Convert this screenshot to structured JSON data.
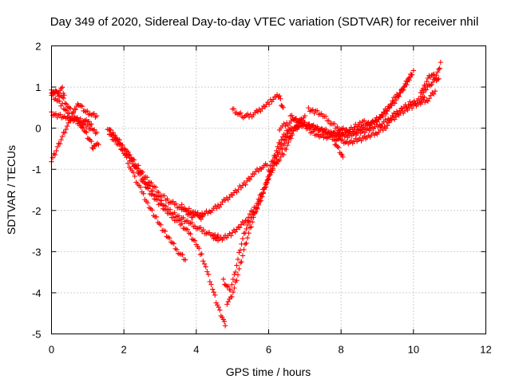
{
  "chart_data": {
    "type": "scatter",
    "title": "Day 349 of 2020, Sidereal Day-to-day VTEC variation (SDTVAR) for receiver nhil",
    "xlabel": "GPS time / hours",
    "ylabel": "SDTVAR / TECUs",
    "xlim": [
      0,
      12
    ],
    "ylim": [
      -5,
      2
    ],
    "xticks": [
      0,
      2,
      4,
      6,
      8,
      10,
      12
    ],
    "yticks": [
      -5,
      -4,
      -3,
      -2,
      -1,
      0,
      1,
      2
    ],
    "grid": true,
    "marker": "plus",
    "color": "#ff0000",
    "series": [
      {
        "points": [
          [
            0,
            0.9
          ],
          [
            0.15,
            0.85
          ],
          [
            0.3,
            0.75
          ],
          [
            0.45,
            0.55
          ],
          [
            0.6,
            0.35
          ],
          [
            0.75,
            0.15
          ],
          [
            0.9,
            -0.05
          ],
          [
            1.0,
            -0.2
          ],
          [
            1.1,
            -0.35
          ],
          [
            1.15,
            -0.5
          ],
          [
            1.2,
            -0.4
          ],
          [
            1.3,
            -0.4
          ]
        ]
      },
      {
        "points": [
          [
            0,
            0.8
          ],
          [
            0.15,
            0.7
          ],
          [
            0.3,
            0.55
          ],
          [
            0.45,
            0.35
          ],
          [
            0.6,
            0.2
          ],
          [
            0.8,
            0.1
          ],
          [
            1.0,
            0.05
          ],
          [
            1.15,
            -0.05
          ],
          [
            1.25,
            -0.1
          ]
        ]
      },
      {
        "points": [
          [
            0,
            0.35
          ],
          [
            0.2,
            0.3
          ],
          [
            0.4,
            0.25
          ],
          [
            0.6,
            0.22
          ],
          [
            0.8,
            0.2
          ],
          [
            1.0,
            0.15
          ],
          [
            1.1,
            0.1
          ]
        ]
      },
      {
        "points": [
          [
            0,
            -0.8
          ],
          [
            0.1,
            -0.6
          ],
          [
            0.2,
            -0.4
          ],
          [
            0.3,
            -0.2
          ],
          [
            0.4,
            0
          ],
          [
            0.5,
            0.15
          ],
          [
            0.6,
            0.35
          ],
          [
            0.7,
            0.55
          ],
          [
            0.75,
            0.6
          ],
          [
            0.85,
            0.5
          ],
          [
            0.95,
            0.4
          ],
          [
            1.1,
            0.35
          ],
          [
            1.25,
            0.3
          ]
        ]
      },
      {
        "points": [
          [
            0,
            0.9
          ],
          [
            0.1,
            0.85
          ],
          [
            0.2,
            0.9
          ],
          [
            0.3,
            0.95
          ],
          [
            0.35,
            0.8
          ]
        ]
      },
      {
        "points": [
          [
            1.55,
            0
          ],
          [
            1.7,
            -0.15
          ],
          [
            1.85,
            -0.35
          ],
          [
            2.0,
            -0.6
          ],
          [
            2.15,
            -0.9
          ],
          [
            2.3,
            -1.2
          ],
          [
            2.5,
            -1.55
          ],
          [
            2.7,
            -1.9
          ],
          [
            2.9,
            -2.2
          ],
          [
            3.1,
            -2.5
          ],
          [
            3.3,
            -2.75
          ],
          [
            3.5,
            -3.0
          ],
          [
            3.7,
            -3.2
          ]
        ]
      },
      {
        "points": [
          [
            1.6,
            -0.05
          ],
          [
            1.8,
            -0.25
          ],
          [
            2.0,
            -0.45
          ],
          [
            2.2,
            -0.75
          ],
          [
            2.4,
            -1.1
          ],
          [
            2.6,
            -1.4
          ],
          [
            2.8,
            -1.65
          ],
          [
            3.0,
            -1.85
          ],
          [
            3.2,
            -2.05
          ],
          [
            3.4,
            -2.2
          ],
          [
            3.6,
            -2.35
          ],
          [
            3.8,
            -2.55
          ],
          [
            4.0,
            -2.8
          ],
          [
            4.15,
            -3.1
          ],
          [
            4.3,
            -3.5
          ],
          [
            4.45,
            -3.9
          ],
          [
            4.55,
            -4.2
          ],
          [
            4.65,
            -4.45
          ],
          [
            4.75,
            -4.65
          ],
          [
            4.8,
            -4.8
          ]
        ]
      },
      {
        "points": [
          [
            1.6,
            -0.1
          ],
          [
            1.8,
            -0.3
          ],
          [
            2.0,
            -0.5
          ],
          [
            2.2,
            -0.7
          ],
          [
            2.4,
            -0.95
          ],
          [
            2.6,
            -1.2
          ],
          [
            2.8,
            -1.4
          ],
          [
            3.0,
            -1.6
          ],
          [
            3.2,
            -1.75
          ],
          [
            3.4,
            -1.85
          ],
          [
            3.6,
            -1.95
          ],
          [
            3.8,
            -2.0
          ],
          [
            4.0,
            -2.1
          ],
          [
            4.2,
            -2.1
          ],
          [
            4.4,
            -2.0
          ],
          [
            4.6,
            -1.9
          ],
          [
            4.8,
            -1.75
          ],
          [
            5.0,
            -1.6
          ],
          [
            5.2,
            -1.45
          ],
          [
            5.4,
            -1.3
          ],
          [
            5.6,
            -1.1
          ],
          [
            5.8,
            -0.95
          ],
          [
            5.95,
            -0.9
          ]
        ]
      },
      {
        "points": [
          [
            1.6,
            -0.15
          ],
          [
            1.8,
            -0.35
          ],
          [
            2.0,
            -0.55
          ],
          [
            2.2,
            -0.8
          ],
          [
            2.4,
            -1.05
          ],
          [
            2.6,
            -1.3
          ],
          [
            2.8,
            -1.55
          ],
          [
            3.0,
            -1.75
          ],
          [
            3.2,
            -1.95
          ],
          [
            3.4,
            -2.1
          ],
          [
            3.6,
            -2.2
          ],
          [
            3.8,
            -2.3
          ],
          [
            4.0,
            -2.4
          ],
          [
            4.2,
            -2.5
          ],
          [
            4.4,
            -2.6
          ],
          [
            4.6,
            -2.7
          ],
          [
            4.8,
            -2.65
          ],
          [
            5.0,
            -2.55
          ],
          [
            5.2,
            -2.4
          ],
          [
            5.4,
            -2.2
          ],
          [
            5.6,
            -1.95
          ],
          [
            5.8,
            -1.6
          ],
          [
            6.0,
            -1.2
          ],
          [
            6.15,
            -0.9
          ],
          [
            6.3,
            -0.6
          ],
          [
            6.45,
            -0.35
          ],
          [
            6.6,
            -0.15
          ],
          [
            6.75,
            0
          ],
          [
            6.85,
            0.05
          ]
        ]
      },
      {
        "points": [
          [
            3.6,
            -1.9
          ],
          [
            3.8,
            -2.1
          ],
          [
            3.9,
            -2.15
          ],
          [
            4.0,
            -2.05
          ],
          [
            4.1,
            -2.2
          ],
          [
            4.2,
            -2.1
          ]
        ]
      },
      {
        "points": [
          [
            4.45,
            -2.6
          ],
          [
            4.55,
            -2.65
          ],
          [
            4.6,
            -2.6
          ]
        ]
      },
      {
        "points": [
          [
            4.75,
            -3.7
          ],
          [
            4.85,
            -3.85
          ],
          [
            4.95,
            -3.9
          ],
          [
            5.05,
            -3.6
          ],
          [
            5.15,
            -3.2
          ],
          [
            5.25,
            -2.8
          ],
          [
            5.35,
            -2.5
          ],
          [
            5.45,
            -2.3
          ],
          [
            5.55,
            -2.1
          ],
          [
            5.65,
            -2.0
          ],
          [
            5.75,
            -1.8
          ],
          [
            5.85,
            -1.6
          ],
          [
            5.95,
            -1.3
          ],
          [
            6.05,
            -1.0
          ],
          [
            6.15,
            -0.7
          ],
          [
            6.25,
            -0.45
          ],
          [
            6.35,
            -0.25
          ],
          [
            6.5,
            -0.1
          ],
          [
            6.6,
            0
          ]
        ]
      },
      {
        "points": [
          [
            4.85,
            -4.25
          ],
          [
            4.95,
            -4.15
          ],
          [
            5.05,
            -3.9
          ],
          [
            5.15,
            -3.55
          ],
          [
            5.25,
            -3.2
          ],
          [
            5.35,
            -2.85
          ],
          [
            5.45,
            -2.55
          ],
          [
            5.55,
            -2.25
          ],
          [
            5.65,
            -2.0
          ],
          [
            5.75,
            -1.8
          ],
          [
            5.85,
            -1.55
          ],
          [
            5.95,
            -1.3
          ],
          [
            6.05,
            -1.1
          ],
          [
            6.15,
            -0.9
          ],
          [
            6.3,
            -0.75
          ],
          [
            6.45,
            -0.55
          ],
          [
            6.55,
            -0.35
          ],
          [
            6.65,
            -0.15
          ],
          [
            6.75,
            0.05
          ],
          [
            6.9,
            0.2
          ],
          [
            7.0,
            0.3
          ]
        ]
      },
      {
        "points": [
          [
            5.0,
            0.45
          ],
          [
            5.15,
            0.35
          ],
          [
            5.3,
            0.3
          ],
          [
            5.5,
            0.3
          ],
          [
            5.7,
            0.4
          ],
          [
            5.9,
            0.55
          ],
          [
            6.05,
            0.65
          ],
          [
            6.2,
            0.75
          ],
          [
            6.3,
            0.8
          ],
          [
            6.35,
            0.6
          ],
          [
            6.4,
            0.5
          ]
        ]
      },
      {
        "points": [
          [
            6.3,
            0
          ],
          [
            6.5,
            0.1
          ],
          [
            6.7,
            0.2
          ],
          [
            6.9,
            0.15
          ],
          [
            7.1,
            0.05
          ],
          [
            7.3,
            0
          ],
          [
            7.5,
            -0.05
          ],
          [
            7.7,
            -0.1
          ],
          [
            7.9,
            -0.15
          ],
          [
            8.1,
            -0.2
          ],
          [
            8.3,
            -0.15
          ],
          [
            8.5,
            -0.1
          ],
          [
            8.7,
            -0.05
          ],
          [
            8.9,
            0
          ],
          [
            9.1,
            0.1
          ],
          [
            9.3,
            0.2
          ],
          [
            9.5,
            0.35
          ],
          [
            9.7,
            0.5
          ],
          [
            9.9,
            0.6
          ],
          [
            10.1,
            0.65
          ],
          [
            10.3,
            0.75
          ]
        ]
      },
      {
        "points": [
          [
            6.6,
            0.3
          ],
          [
            6.8,
            0.2
          ],
          [
            7.0,
            0.05
          ],
          [
            7.2,
            -0.1
          ],
          [
            7.4,
            -0.2
          ],
          [
            7.6,
            -0.2
          ],
          [
            7.8,
            -0.25
          ],
          [
            8.0,
            -0.3
          ],
          [
            8.2,
            -0.35
          ],
          [
            8.4,
            -0.3
          ],
          [
            8.6,
            -0.25
          ],
          [
            8.8,
            -0.2
          ],
          [
            9.0,
            -0.1
          ],
          [
            9.2,
            0
          ],
          [
            9.4,
            0.2
          ],
          [
            9.6,
            0.35
          ],
          [
            9.8,
            0.45
          ],
          [
            10.0,
            0.55
          ],
          [
            10.2,
            0.6
          ],
          [
            10.4,
            0.7
          ],
          [
            10.6,
            0.9
          ]
        ]
      },
      {
        "points": [
          [
            7.1,
            0.45
          ],
          [
            7.3,
            0.4
          ],
          [
            7.5,
            0.3
          ],
          [
            7.7,
            0.15
          ],
          [
            7.9,
            0
          ],
          [
            8.1,
            -0.05
          ],
          [
            8.3,
            -0.1
          ],
          [
            8.5,
            0
          ],
          [
            8.7,
            0.05
          ],
          [
            8.9,
            0.15
          ],
          [
            9.1,
            0.3
          ],
          [
            9.3,
            0.5
          ],
          [
            9.5,
            0.75
          ],
          [
            9.7,
            0.95
          ],
          [
            9.85,
            1.15
          ],
          [
            9.95,
            1.3
          ]
        ]
      },
      {
        "points": [
          [
            6.0,
            -1.0
          ],
          [
            6.2,
            -0.65
          ],
          [
            6.4,
            -0.3
          ],
          [
            6.6,
            -0.05
          ],
          [
            6.8,
            0.05
          ],
          [
            7.0,
            0.1
          ],
          [
            7.2,
            0.05
          ],
          [
            7.4,
            -0.05
          ],
          [
            7.6,
            -0.1
          ],
          [
            7.8,
            -0.15
          ],
          [
            8.0,
            -0.15
          ],
          [
            8.2,
            -0.05
          ],
          [
            8.4,
            0.05
          ],
          [
            8.6,
            0.15
          ],
          [
            8.8,
            0.1
          ],
          [
            9.0,
            0.2
          ],
          [
            9.2,
            0.35
          ],
          [
            9.4,
            0.55
          ],
          [
            9.6,
            0.8
          ],
          [
            9.8,
            1.1
          ],
          [
            10.0,
            1.4
          ]
        ]
      },
      {
        "points": [
          [
            7.8,
            -0.3
          ],
          [
            7.9,
            -0.45
          ],
          [
            8.0,
            -0.6
          ],
          [
            8.05,
            -0.7
          ]
        ]
      },
      {
        "points": [
          [
            10.2,
            0.8
          ],
          [
            10.3,
            1.0
          ],
          [
            10.4,
            1.2
          ],
          [
            10.5,
            1.3
          ],
          [
            10.6,
            1.25
          ],
          [
            10.7,
            1.4
          ],
          [
            10.75,
            1.6
          ]
        ]
      },
      {
        "points": [
          [
            10.2,
            0.85
          ],
          [
            10.35,
            0.95
          ],
          [
            10.5,
            1.1
          ],
          [
            10.6,
            1.2
          ],
          [
            10.7,
            1.2
          ]
        ]
      }
    ]
  }
}
